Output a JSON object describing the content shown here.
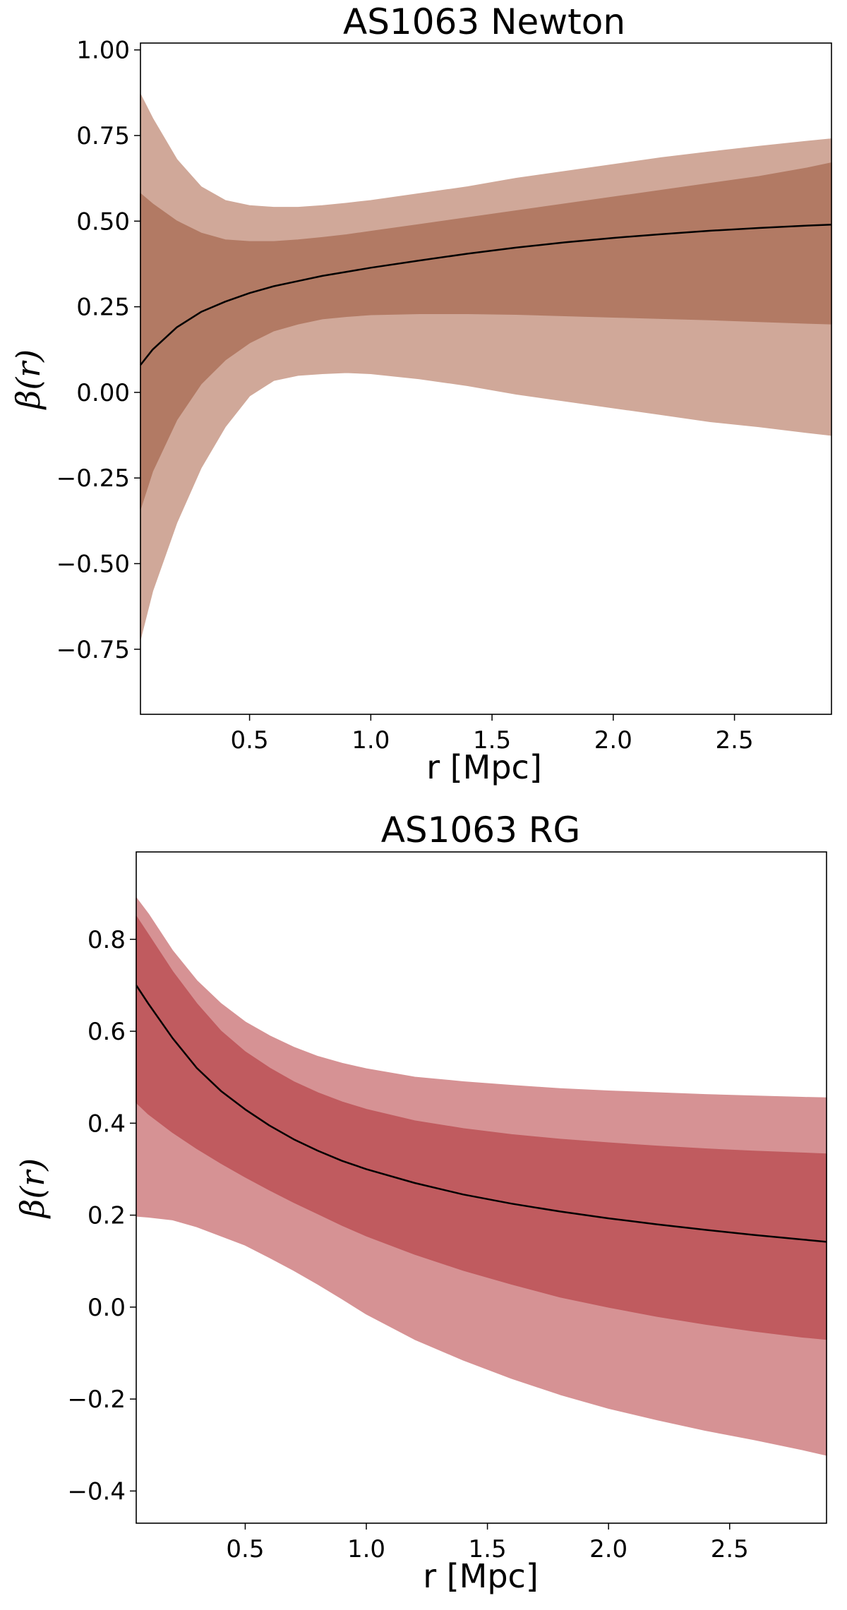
{
  "chart_data": [
    {
      "type": "line",
      "title": "AS1063 Newton",
      "xlabel": "r [Mpc]",
      "ylabel": "β(r)",
      "xlim": [
        0.05,
        2.9
      ],
      "ylim": [
        -0.94,
        1.02
      ],
      "xticks": [
        0.5,
        1.0,
        1.5,
        2.0,
        2.5
      ],
      "xtick_labels": [
        "0.5",
        "1.0",
        "1.5",
        "2.0",
        "2.5"
      ],
      "yticks": [
        1.0,
        0.75,
        0.5,
        0.25,
        0.0,
        -0.25,
        -0.5,
        -0.75
      ],
      "ytick_labels": [
        "1.00",
        "0.75",
        "0.50",
        "0.25",
        "0.00",
        "−0.25",
        "−0.50",
        "−0.75"
      ],
      "colors": {
        "outer_band": "#d0a899",
        "inner_band": "#b27a64",
        "line": "#000000"
      },
      "x": [
        0.05,
        0.1,
        0.2,
        0.3,
        0.4,
        0.5,
        0.6,
        0.7,
        0.8,
        0.9,
        1.0,
        1.2,
        1.4,
        1.6,
        1.8,
        2.0,
        2.2,
        2.4,
        2.6,
        2.8,
        2.9
      ],
      "series": [
        {
          "name": "median",
          "values": [
            0.08,
            0.125,
            0.19,
            0.235,
            0.265,
            0.29,
            0.31,
            0.325,
            0.34,
            0.352,
            0.364,
            0.385,
            0.405,
            0.423,
            0.438,
            0.451,
            0.462,
            0.472,
            0.48,
            0.487,
            0.49
          ]
        },
        {
          "name": "inner_upper",
          "values": [
            0.58,
            0.55,
            0.5,
            0.465,
            0.445,
            0.44,
            0.44,
            0.445,
            0.452,
            0.46,
            0.47,
            0.49,
            0.51,
            0.53,
            0.55,
            0.57,
            0.59,
            0.61,
            0.63,
            0.655,
            0.67
          ]
        },
        {
          "name": "inner_lower",
          "values": [
            -0.34,
            -0.23,
            -0.08,
            0.025,
            0.095,
            0.145,
            0.18,
            0.2,
            0.215,
            0.222,
            0.227,
            0.23,
            0.23,
            0.228,
            0.224,
            0.22,
            0.216,
            0.212,
            0.207,
            0.202,
            0.2
          ]
        },
        {
          "name": "outer_upper",
          "values": [
            0.87,
            0.8,
            0.68,
            0.6,
            0.56,
            0.545,
            0.54,
            0.54,
            0.545,
            0.552,
            0.56,
            0.58,
            0.6,
            0.625,
            0.645,
            0.665,
            0.685,
            0.702,
            0.718,
            0.733,
            0.74
          ]
        },
        {
          "name": "outer_lower",
          "values": [
            -0.72,
            -0.58,
            -0.38,
            -0.22,
            -0.1,
            -0.01,
            0.035,
            0.05,
            0.055,
            0.058,
            0.055,
            0.04,
            0.02,
            -0.005,
            -0.025,
            -0.045,
            -0.065,
            -0.085,
            -0.1,
            -0.117,
            -0.125
          ]
        }
      ]
    },
    {
      "type": "line",
      "title": "AS1063 RG",
      "xlabel": "r [Mpc]",
      "ylabel": "β(r)",
      "xlim": [
        0.05,
        2.9
      ],
      "ylim": [
        -0.47,
        0.99
      ],
      "xticks": [
        0.5,
        1.0,
        1.5,
        2.0,
        2.5
      ],
      "xtick_labels": [
        "0.5",
        "1.0",
        "1.5",
        "2.0",
        "2.5"
      ],
      "yticks": [
        0.8,
        0.6,
        0.4,
        0.2,
        0.0,
        -0.2,
        -0.4
      ],
      "ytick_labels": [
        "0.8",
        "0.6",
        "0.4",
        "0.2",
        "0.0",
        "−0.2",
        "−0.4"
      ],
      "colors": {
        "outer_band": "#d69294",
        "inner_band": "#c05b5f",
        "line": "#000000"
      },
      "x": [
        0.05,
        0.1,
        0.2,
        0.3,
        0.4,
        0.5,
        0.6,
        0.7,
        0.8,
        0.9,
        1.0,
        1.2,
        1.4,
        1.6,
        1.8,
        2.0,
        2.2,
        2.4,
        2.6,
        2.8,
        2.9
      ],
      "series": [
        {
          "name": "median",
          "values": [
            0.7,
            0.66,
            0.585,
            0.52,
            0.47,
            0.43,
            0.395,
            0.365,
            0.34,
            0.318,
            0.3,
            0.27,
            0.245,
            0.225,
            0.208,
            0.193,
            0.18,
            0.168,
            0.157,
            0.147,
            0.142
          ]
        },
        {
          "name": "inner_upper",
          "values": [
            0.85,
            0.81,
            0.73,
            0.66,
            0.6,
            0.555,
            0.52,
            0.49,
            0.466,
            0.446,
            0.43,
            0.405,
            0.388,
            0.375,
            0.365,
            0.357,
            0.35,
            0.344,
            0.339,
            0.335,
            0.333
          ]
        },
        {
          "name": "inner_lower",
          "values": [
            0.445,
            0.42,
            0.38,
            0.345,
            0.313,
            0.283,
            0.255,
            0.228,
            0.203,
            0.178,
            0.155,
            0.115,
            0.08,
            0.05,
            0.022,
            0.0,
            -0.02,
            -0.037,
            -0.052,
            -0.065,
            -0.07
          ]
        },
        {
          "name": "outer_upper",
          "values": [
            0.89,
            0.855,
            0.775,
            0.71,
            0.66,
            0.62,
            0.59,
            0.565,
            0.545,
            0.53,
            0.518,
            0.5,
            0.49,
            0.482,
            0.475,
            0.47,
            0.466,
            0.462,
            0.459,
            0.456,
            0.455
          ]
        },
        {
          "name": "outer_lower",
          "values": [
            0.198,
            0.196,
            0.19,
            0.175,
            0.155,
            0.135,
            0.108,
            0.08,
            0.05,
            0.018,
            -0.015,
            -0.07,
            -0.115,
            -0.155,
            -0.19,
            -0.22,
            -0.245,
            -0.268,
            -0.288,
            -0.31,
            -0.322
          ]
        }
      ]
    }
  ]
}
